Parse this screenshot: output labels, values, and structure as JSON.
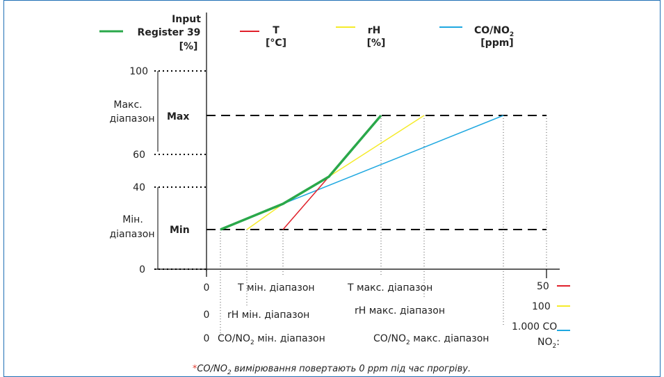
{
  "legend": [
    {
      "lines": [
        "Input",
        "Register 39",
        "[%]"
      ],
      "color": "#2aa84a",
      "key": "input-register"
    },
    {
      "lines": [
        "T",
        "[°C]"
      ],
      "color": "#e0202a",
      "key": "temperature"
    },
    {
      "lines": [
        "rH",
        "[%]"
      ],
      "color": "#f5eb2a",
      "key": "humidity"
    },
    {
      "lines": [
        "CO/NO",
        "2",
        "[ppm]"
      ],
      "color": "#1fa8e0",
      "key": "co-no2"
    }
  ],
  "y_axis": {
    "tick_100": "100",
    "tick_60": "60",
    "tick_40": "40",
    "tick_0": "0",
    "max_range_label": [
      "Макс.",
      "діапазон"
    ],
    "min_range_label": [
      "Мін.",
      "діапазон"
    ],
    "max_label": "Max",
    "min_label": "Min"
  },
  "x_axis": {
    "t_row": {
      "start": "0",
      "min": "T мін. діапазон",
      "max": "T макс. діапазон",
      "end": "50"
    },
    "rh_row": {
      "start": "0",
      "min": "rH мін. діапазон",
      "max": "rH макс. діапазон",
      "end": "100"
    },
    "co_row": {
      "start": "0",
      "min_a": "CO/NO",
      "min_sub": "2",
      "min_b": " мін. діапазон",
      "max_a": "CO/NO",
      "max_sub": "2",
      "max_b": " макс. діапазон",
      "end_line1": "1.000 CO",
      "end_line2_a": "NO",
      "end_line2_sub": "2",
      "end_line2_b": ":"
    }
  },
  "footnote": {
    "star": "*",
    "a": "CO/NO",
    "sub": "2",
    "b": " вимірювання повертають 0 ppm під час прогріву."
  },
  "colors": {
    "frame": "#1f6fb5",
    "green": "#2aa84a",
    "red": "#e0202a",
    "yellow": "#f5eb2a",
    "blue": "#1fa8e0"
  }
}
